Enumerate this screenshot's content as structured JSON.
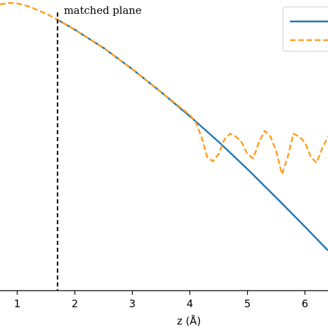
{
  "chart_data": {
    "type": "line",
    "xlabel": "z (Å)",
    "ylabel": "",
    "xlim": [
      0.7,
      6.4
    ],
    "ylim": [
      0,
      1.0
    ],
    "x_ticks": [
      "1",
      "2",
      "3",
      "4",
      "5",
      "6"
    ],
    "x_tick_values": [
      1,
      2,
      3,
      4,
      5,
      6
    ],
    "grid": false,
    "legend": "top-right",
    "colors": {
      "solid": "#1f77b4",
      "dashed": "#ff9f1c",
      "marker": "#000000"
    },
    "annotations": [
      {
        "text": "matched plane",
        "x": 1.7,
        "line_style": "dashed-vertical"
      }
    ],
    "series": [
      {
        "style": "solid",
        "x": [
          1.7,
          2.0,
          2.5,
          3.0,
          3.5,
          4.0,
          4.5,
          5.0,
          5.5,
          6.0,
          6.4
        ],
        "y": [
          0.932,
          0.898,
          0.835,
          0.762,
          0.683,
          0.6,
          0.512,
          0.418,
          0.32,
          0.22,
          0.138
        ]
      },
      {
        "style": "dashed",
        "x": [
          0.7,
          0.85,
          1.0,
          1.2,
          1.5,
          1.7,
          2.0,
          2.5,
          3.0,
          3.5,
          3.9,
          4.0,
          4.1,
          4.2,
          4.3,
          4.4,
          4.5,
          4.6,
          4.7,
          4.8,
          4.9,
          5.0,
          5.1,
          5.2,
          5.3,
          5.4,
          5.5,
          5.6,
          5.7,
          5.8,
          5.9,
          6.0,
          6.1,
          6.2,
          6.3,
          6.4
        ],
        "y": [
          0.985,
          0.99,
          0.988,
          0.978,
          0.953,
          0.932,
          0.898,
          0.835,
          0.762,
          0.683,
          0.62,
          0.605,
          0.58,
          0.53,
          0.46,
          0.445,
          0.47,
          0.52,
          0.54,
          0.53,
          0.51,
          0.47,
          0.455,
          0.51,
          0.55,
          0.53,
          0.48,
          0.4,
          0.46,
          0.54,
          0.53,
          0.51,
          0.46,
          0.44,
          0.49,
          0.53
        ]
      }
    ]
  }
}
